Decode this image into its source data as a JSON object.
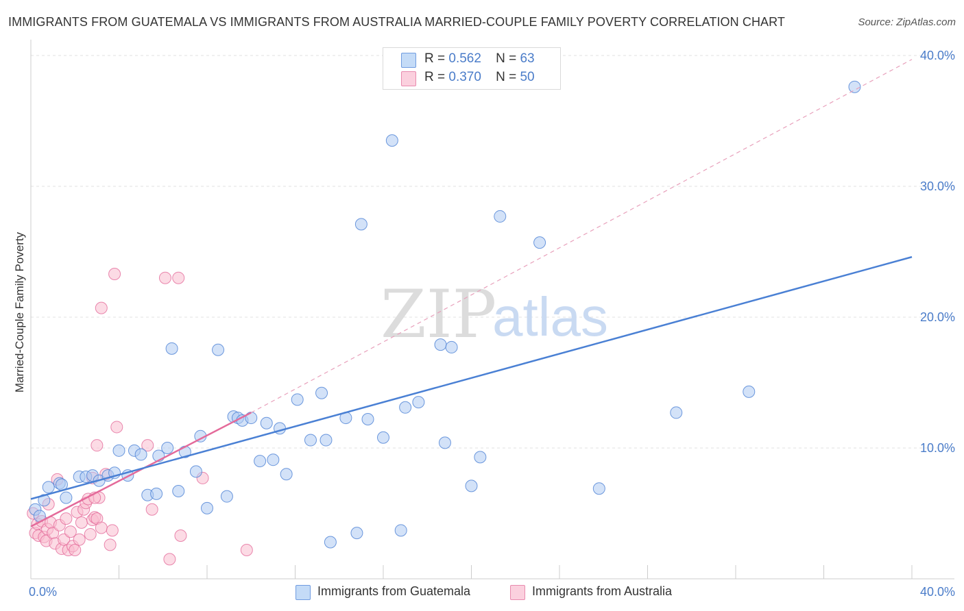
{
  "title": "IMMIGRANTS FROM GUATEMALA VS IMMIGRANTS FROM AUSTRALIA MARRIED-COUPLE FAMILY POVERTY CORRELATION CHART",
  "source": "Source: ZipAtlas.com",
  "watermark": {
    "zip": "ZIP",
    "atlas": "atlas"
  },
  "stats": [
    {
      "r_label": "R =",
      "r_value": "0.562",
      "n_label": "N =",
      "n_value": "63",
      "color": "#aecbf3"
    },
    {
      "r_label": "R =",
      "r_value": "0.370",
      "n_label": "N =",
      "n_value": "50",
      "color": "#f9bdd0"
    }
  ],
  "legend": [
    {
      "label": "Immigrants from Guatemala",
      "color": "#aecbf3"
    },
    {
      "label": "Immigrants from Australia",
      "color": "#f9bdd0"
    }
  ],
  "chart_data": {
    "type": "scatter",
    "xlabel": "",
    "ylabel": "Married-Couple Family Poverty",
    "xlim": [
      0,
      40
    ],
    "ylim": [
      0,
      41
    ],
    "x_tick_labels": [
      {
        "value": 0,
        "label": "0.0%"
      },
      {
        "value": 40,
        "label": "40.0%"
      }
    ],
    "y_tick_labels": [
      {
        "value": 10,
        "label": "10.0%"
      },
      {
        "value": 20,
        "label": "20.0%"
      },
      {
        "value": 30,
        "label": "30.0%"
      },
      {
        "value": 40,
        "label": "40.0%"
      }
    ],
    "grid": true,
    "series": [
      {
        "name": "Immigrants from Guatemala",
        "color": "#4a80d4",
        "fill": "#aecbf3",
        "r": 0.562,
        "n": 63,
        "trend": {
          "x0": 0,
          "y0": 6.1,
          "x1": 40,
          "y1": 24.6
        },
        "points": [
          [
            0.2,
            5.3
          ],
          [
            0.4,
            4.8
          ],
          [
            0.6,
            6.0
          ],
          [
            0.8,
            7.0
          ],
          [
            1.3,
            7.3
          ],
          [
            1.4,
            7.2
          ],
          [
            1.6,
            6.2
          ],
          [
            2.2,
            7.8
          ],
          [
            2.5,
            7.8
          ],
          [
            2.8,
            7.9
          ],
          [
            3.1,
            7.5
          ],
          [
            3.5,
            7.9
          ],
          [
            3.8,
            8.1
          ],
          [
            4.4,
            7.9
          ],
          [
            4.0,
            9.8
          ],
          [
            4.7,
            9.8
          ],
          [
            5.0,
            9.5
          ],
          [
            5.3,
            6.4
          ],
          [
            5.7,
            6.5
          ],
          [
            5.8,
            9.4
          ],
          [
            6.2,
            10.0
          ],
          [
            6.4,
            17.6
          ],
          [
            6.7,
            6.7
          ],
          [
            7.0,
            9.7
          ],
          [
            7.5,
            8.2
          ],
          [
            7.7,
            10.9
          ],
          [
            8.0,
            5.4
          ],
          [
            8.5,
            17.5
          ],
          [
            8.9,
            6.3
          ],
          [
            9.2,
            12.4
          ],
          [
            9.4,
            12.3
          ],
          [
            9.6,
            12.1
          ],
          [
            10.0,
            12.3
          ],
          [
            10.4,
            9.0
          ],
          [
            10.7,
            11.9
          ],
          [
            11.0,
            9.1
          ],
          [
            11.3,
            11.5
          ],
          [
            11.6,
            8.0
          ],
          [
            12.1,
            13.7
          ],
          [
            12.7,
            10.6
          ],
          [
            13.2,
            14.2
          ],
          [
            13.4,
            10.6
          ],
          [
            13.6,
            2.8
          ],
          [
            14.3,
            12.3
          ],
          [
            14.8,
            3.5
          ],
          [
            15.0,
            27.1
          ],
          [
            15.3,
            12.2
          ],
          [
            16.0,
            10.8
          ],
          [
            16.4,
            33.5
          ],
          [
            16.8,
            3.7
          ],
          [
            17.0,
            13.1
          ],
          [
            17.6,
            13.5
          ],
          [
            18.6,
            17.9
          ],
          [
            18.8,
            10.4
          ],
          [
            19.1,
            17.7
          ],
          [
            20.0,
            7.1
          ],
          [
            20.4,
            9.3
          ],
          [
            21.3,
            27.7
          ],
          [
            23.1,
            25.7
          ],
          [
            25.8,
            6.9
          ],
          [
            29.3,
            12.7
          ],
          [
            32.6,
            14.3
          ],
          [
            37.4,
            37.6
          ]
        ]
      },
      {
        "name": "Immigrants from Australia",
        "color": "#e46a9a",
        "fill": "#f9bdd0",
        "r": 0.37,
        "n": 50,
        "trend": {
          "x0": 0,
          "y0": 4.0,
          "x1": 10,
          "y1": 12.7
        },
        "trend_extension": {
          "x0": 10,
          "y0": 12.7,
          "x1": 40,
          "y1": 39.7
        },
        "points": [
          [
            0.1,
            5.0
          ],
          [
            0.2,
            3.5
          ],
          [
            0.3,
            4.2
          ],
          [
            0.35,
            3.3
          ],
          [
            0.5,
            4.4
          ],
          [
            0.6,
            3.2
          ],
          [
            0.7,
            2.9
          ],
          [
            0.75,
            3.8
          ],
          [
            0.8,
            5.7
          ],
          [
            0.9,
            4.3
          ],
          [
            1.0,
            3.5
          ],
          [
            1.1,
            2.7
          ],
          [
            1.2,
            7.6
          ],
          [
            1.3,
            4.1
          ],
          [
            1.4,
            2.3
          ],
          [
            1.5,
            3.0
          ],
          [
            1.6,
            4.6
          ],
          [
            1.7,
            2.2
          ],
          [
            1.8,
            3.6
          ],
          [
            1.9,
            2.5
          ],
          [
            2.0,
            2.2
          ],
          [
            2.1,
            5.1
          ],
          [
            2.2,
            3.0
          ],
          [
            2.3,
            4.3
          ],
          [
            2.4,
            5.3
          ],
          [
            2.5,
            5.8
          ],
          [
            2.6,
            6.1
          ],
          [
            2.7,
            3.4
          ],
          [
            2.8,
            4.5
          ],
          [
            2.9,
            4.7
          ],
          [
            3.0,
            4.6
          ],
          [
            3.1,
            6.2
          ],
          [
            3.2,
            3.9
          ],
          [
            3.4,
            8.0
          ],
          [
            3.6,
            2.6
          ],
          [
            3.7,
            3.7
          ],
          [
            2.8,
            7.7
          ],
          [
            2.9,
            6.2
          ],
          [
            3.0,
            10.2
          ],
          [
            3.2,
            20.7
          ],
          [
            3.8,
            23.3
          ],
          [
            3.9,
            11.6
          ],
          [
            5.3,
            10.2
          ],
          [
            5.5,
            5.3
          ],
          [
            6.1,
            23.0
          ],
          [
            6.3,
            1.5
          ],
          [
            6.7,
            23.0
          ],
          [
            6.8,
            3.3
          ],
          [
            7.8,
            7.7
          ],
          [
            9.8,
            2.2
          ]
        ]
      }
    ]
  }
}
